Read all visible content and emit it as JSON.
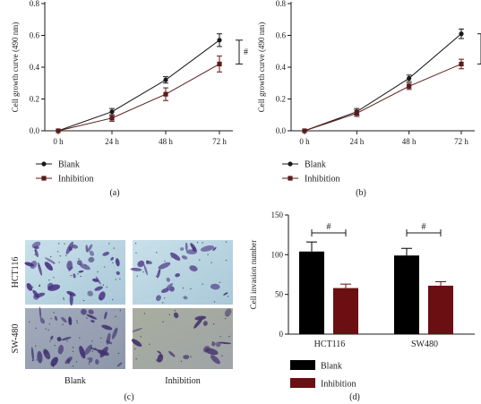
{
  "panels": {
    "a": "(a)",
    "b": "(b)",
    "c": "(c)",
    "d": "(d)"
  },
  "micrographs": {
    "row_labels": [
      "HCT116",
      "SW-480"
    ],
    "col_labels": [
      "Blank",
      "Inhibition"
    ]
  },
  "colors": {
    "blank_line": "#1a1a1a",
    "inhibition_line": "#5c1a1a",
    "blank_bar": "#000000",
    "inhibition_bar": "#6b0f12",
    "micro_bg_top": "#b8d4e0",
    "micro_bg_bottom": "#9fa8b8",
    "stain": "#4a2f7a"
  },
  "chart_data": [
    {
      "id": "a",
      "type": "line",
      "ylabel": "Cell growth curve (490 nm)",
      "xlabel": "",
      "categories": [
        "0 h",
        "24 h",
        "48 h",
        "72 h"
      ],
      "ylim": [
        0,
        0.8
      ],
      "yticks": [
        "0.0",
        "0.2",
        "0.4",
        "0.6",
        "0.8"
      ],
      "series": [
        {
          "name": "Blank",
          "marker": "circle",
          "values": [
            0.0,
            0.12,
            0.32,
            0.57
          ],
          "errors": [
            0.0,
            0.02,
            0.02,
            0.04
          ]
        },
        {
          "name": "Inhibition",
          "marker": "square",
          "values": [
            0.0,
            0.08,
            0.23,
            0.42
          ],
          "errors": [
            0.0,
            0.02,
            0.04,
            0.05
          ]
        }
      ],
      "annotation": "#",
      "legend": "bottom-left"
    },
    {
      "id": "b",
      "type": "line",
      "ylabel": "Cell growth curve (490 nm)",
      "xlabel": "",
      "categories": [
        "0 h",
        "24 h",
        "48 h",
        "72 h"
      ],
      "ylim": [
        0,
        0.8
      ],
      "yticks": [
        "0.0",
        "0.2",
        "0.4",
        "0.6",
        "0.8"
      ],
      "series": [
        {
          "name": "Blank",
          "marker": "circle",
          "values": [
            0.0,
            0.12,
            0.33,
            0.61
          ],
          "errors": [
            0.0,
            0.02,
            0.02,
            0.03
          ]
        },
        {
          "name": "Inhibition",
          "marker": "square",
          "values": [
            0.0,
            0.11,
            0.28,
            0.42
          ],
          "errors": [
            0.0,
            0.02,
            0.02,
            0.03
          ]
        }
      ],
      "annotation": "#",
      "legend": "bottom-left"
    },
    {
      "id": "d",
      "type": "bar",
      "ylabel": "Cell invasion number",
      "xlabel": "",
      "categories": [
        "HCT116",
        "SW480"
      ],
      "ylim": [
        0,
        150
      ],
      "yticks": [
        "0",
        "50",
        "100",
        "150"
      ],
      "series": [
        {
          "name": "Blank",
          "values": [
            104,
            99
          ],
          "errors": [
            12,
            9
          ]
        },
        {
          "name": "Inhibition",
          "values": [
            58,
            61
          ],
          "errors": [
            5,
            5
          ]
        }
      ],
      "annotation": "#",
      "legend": "bottom-left"
    }
  ]
}
